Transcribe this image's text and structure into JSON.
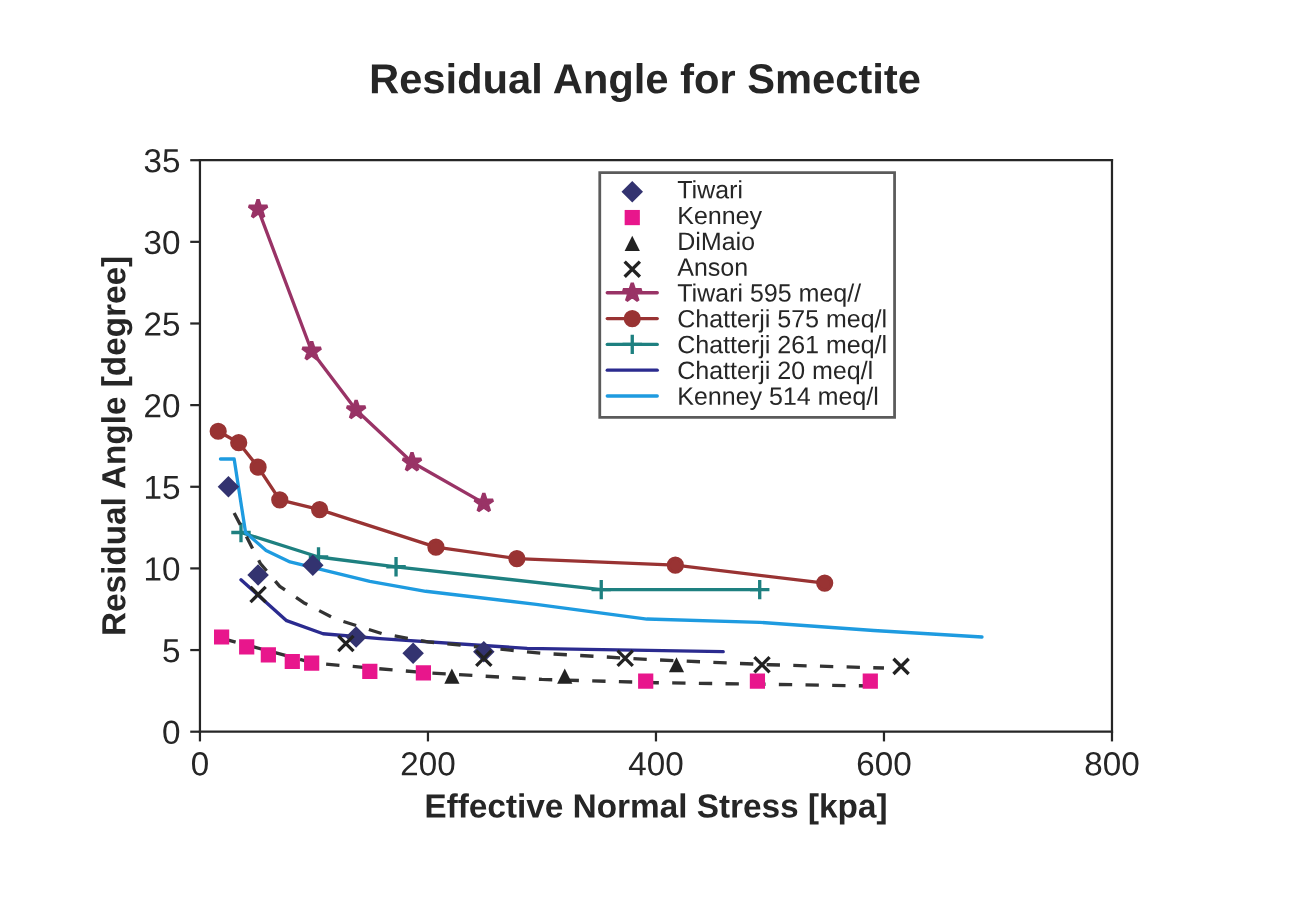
{
  "chart_data": {
    "type": "scatter",
    "title": "Residual Angle for Smectite",
    "xlabel": "Effective Normal Stress [kpa]",
    "ylabel": "Residual Angle [degree]",
    "xlim": [
      0,
      800
    ],
    "xticks": [
      0,
      200,
      400,
      600,
      800
    ],
    "ylim": [
      0,
      35
    ],
    "yticks": [
      0,
      5,
      10,
      15,
      20,
      25,
      30,
      35
    ],
    "grid": false,
    "legend": "top",
    "series": [
      {
        "name": "Tiwari",
        "marker": "diamond",
        "color": "#333370",
        "x": [
          25,
          51,
          99,
          137,
          187,
          249
        ],
        "values": [
          15.0,
          9.6,
          10.2,
          5.8,
          4.8,
          4.9
        ]
      },
      {
        "name": "Kenney",
        "marker": "square",
        "color": "#e8168c",
        "x": [
          19,
          41,
          60,
          81,
          98,
          149,
          196,
          391,
          489,
          588
        ],
        "values": [
          5.8,
          5.2,
          4.7,
          4.3,
          4.2,
          3.7,
          3.6,
          3.1,
          3.1,
          3.1
        ]
      },
      {
        "name": "DiMaio",
        "marker": "triangle",
        "color": "#222222",
        "x": [
          221,
          320,
          418
        ],
        "values": [
          3.4,
          3.4,
          4.1
        ]
      },
      {
        "name": "Anson",
        "marker": "cross",
        "color": "#222222",
        "x": [
          51,
          128,
          249,
          373,
          493,
          615
        ],
        "values": [
          8.4,
          5.4,
          4.5,
          4.5,
          4.1,
          4.0
        ]
      },
      {
        "name": "Tiwari 595 meq//",
        "type": "line",
        "marker": "star",
        "color": "#993366",
        "x": [
          51,
          98,
          137,
          186,
          249
        ],
        "values": [
          32,
          23.3,
          19.7,
          16.5,
          14
        ]
      },
      {
        "name": "Chatterji 575 meq/l",
        "type": "line",
        "marker": "circle",
        "color": "#993333",
        "x": [
          16,
          34,
          51,
          70,
          105,
          207,
          278,
          417,
          548
        ],
        "values": [
          18.4,
          17.7,
          16.2,
          14.2,
          13.6,
          11.3,
          10.6,
          10.2,
          9.1
        ]
      },
      {
        "name": "Chatterji 261 meq/l",
        "type": "line",
        "marker": "cross",
        "color": "#1e8080",
        "x": [
          36,
          104,
          172,
          352,
          491
        ],
        "values": [
          12.2,
          10.7,
          10.1,
          8.7,
          8.7
        ]
      },
      {
        "name": "Chatterji 20 meq/l",
        "type": "line",
        "marker": "none",
        "color": "#2b2b8f",
        "x": [
          36,
          76,
          108,
          158,
          287,
          459
        ],
        "values": [
          9.3,
          6.8,
          6.0,
          5.7,
          5.1,
          4.9
        ]
      },
      {
        "name": "Kenney 514 meq/l",
        "type": "line",
        "marker": "none",
        "color": "#1e9be0",
        "x": [
          18,
          30,
          40,
          58,
          79,
          149,
          198,
          295,
          392,
          491,
          591,
          686
        ],
        "values": [
          16.7,
          16.7,
          12.2,
          11.1,
          10.4,
          9.2,
          8.6,
          7.8,
          6.9,
          6.7,
          6.2,
          5.8
        ]
      },
      {
        "type": "line",
        "marker": "none",
        "line_style": "dashed",
        "color": "#333333",
        "x": [
          30,
          53,
          70,
          91,
          119,
          160,
          200,
          300,
          400,
          500,
          600
        ],
        "values": [
          13.4,
          10.3,
          8.9,
          7.9,
          6.9,
          6.0,
          5.5,
          4.8,
          4.4,
          4.1,
          3.9
        ]
      },
      {
        "type": "line",
        "marker": "none",
        "line_style": "dashed",
        "color": "#333333",
        "x": [
          20,
          100,
          200,
          300,
          400,
          500,
          590
        ],
        "values": [
          5.7,
          4.2,
          3.6,
          3.2,
          3.0,
          2.9,
          2.8
        ]
      }
    ]
  }
}
